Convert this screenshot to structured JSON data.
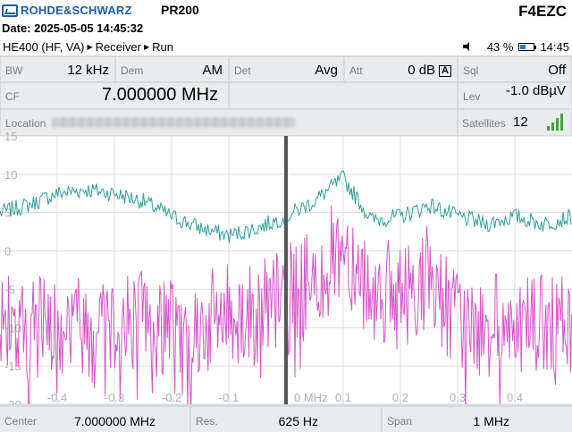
{
  "header": {
    "brand": "ROHDE&SCHWARZ",
    "device": "PR200",
    "callsign": "F4EZC",
    "date": "Date: 2025-05-05 14:45:32"
  },
  "status": {
    "crumbs": [
      "HE400 (HF, VA)",
      "Receiver",
      "Run"
    ],
    "battery": "43 %",
    "battery_level": 0.43,
    "time": "14:45"
  },
  "params": {
    "bw_label": "BW",
    "bw_value": "12 kHz",
    "dem_label": "Dem",
    "dem_value": "AM",
    "det_label": "Det",
    "det_value": "Avg",
    "att_label": "Att",
    "att_value": "0 dB",
    "att_mode": "A",
    "sql_label": "Sql",
    "sql_value": "Off",
    "cf_label": "CF",
    "cf_value": "7.000000 MHz",
    "lev_label": "Lev",
    "lev_value": "-1.0 dBµV",
    "location_label": "Location",
    "satellites_label": "Satellites",
    "satellites_value": "12"
  },
  "chart_data": {
    "type": "line",
    "xlabel": "",
    "ylabel": "",
    "x_ticks": [
      "-0.4",
      "-0.3",
      "-0.2",
      "-0.1",
      "0 MHz",
      "0.1",
      "0.2",
      "0.3",
      "0.4"
    ],
    "x_tick_values": [
      -0.4,
      -0.3,
      -0.2,
      -0.1,
      0,
      0.1,
      0.2,
      0.3,
      0.4
    ],
    "y_ticks": [
      "15",
      "10",
      "5",
      "0",
      "-5",
      "-10",
      "-15",
      "-20"
    ],
    "y_tick_values": [
      15,
      10,
      5,
      0,
      -5,
      -10,
      -15,
      -20
    ],
    "xlim": [
      -0.5,
      0.5
    ],
    "ylim": [
      -20,
      15
    ],
    "grid": true,
    "colors": {
      "trace": "#2f9c9c",
      "spectrum": "#d455c8",
      "center": "#555555"
    },
    "series": [
      {
        "x": [
          -0.5,
          -0.45,
          -0.4,
          -0.35,
          -0.3,
          -0.25,
          -0.2,
          -0.15,
          -0.1,
          -0.05,
          0,
          0.05,
          0.1,
          0.15,
          0.2,
          0.25,
          0.3,
          0.35,
          0.4,
          0.45,
          0.5
        ],
        "values": [
          5,
          6,
          7.5,
          8,
          7.5,
          6.5,
          4.5,
          3,
          2,
          3,
          4.5,
          6.5,
          9.5,
          4,
          4.5,
          6,
          4.5,
          3.5,
          4.5,
          3.5,
          4.5
        ]
      },
      {
        "x": [
          -0.5,
          -0.45,
          -0.4,
          -0.35,
          -0.3,
          -0.25,
          -0.2,
          -0.15,
          -0.1,
          -0.05,
          0,
          0.05,
          0.1,
          0.15,
          0.2,
          0.25,
          0.3,
          0.35,
          0.4,
          0.45,
          0.5
        ],
        "values": [
          -10,
          -10,
          -9,
          -9.5,
          -9,
          -9,
          -10,
          -10,
          -8,
          -8.5,
          -6,
          -4,
          1,
          -5,
          -6,
          -3,
          -9,
          -10,
          -9,
          -10,
          -10
        ]
      }
    ]
  },
  "footer": {
    "center_label": "Center",
    "center_value": "7.000000 MHz",
    "res_label": "Res.",
    "res_value": "625 Hz",
    "span_label": "Span",
    "span_value": "1 MHz"
  }
}
